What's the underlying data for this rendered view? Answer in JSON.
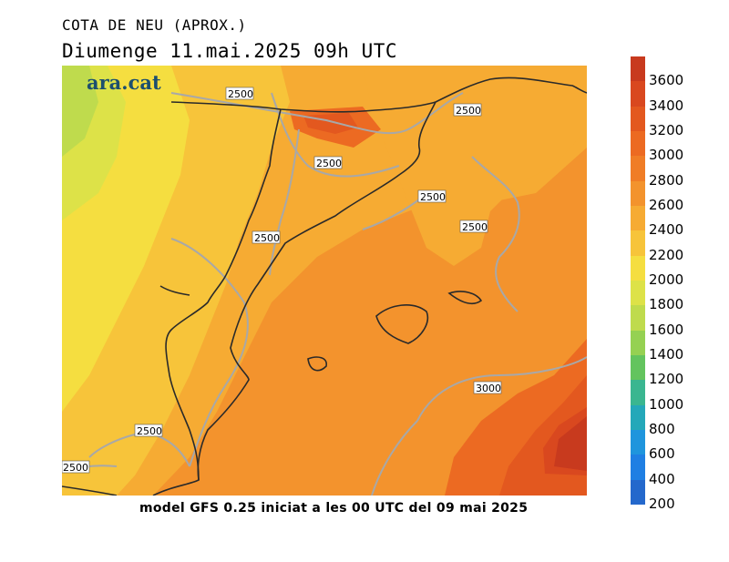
{
  "title": "COTA DE NEU (APROX.)",
  "subtitle": "Diumenge  11.mai.2025 09h UTC",
  "logo_text": "ara.cat",
  "footer": "model GFS 0.25 iniciat a les 00 UTC del 09 mai 2025",
  "contour_labels": [
    "2500",
    "2500",
    "2500",
    "2500",
    "2500",
    "2500",
    "2500",
    "2500",
    "3000"
  ],
  "colorbar": {
    "labels": [
      "3600",
      "3400",
      "3200",
      "3000",
      "2800",
      "2600",
      "2400",
      "2200",
      "2000",
      "1800",
      "1600",
      "1400",
      "1200",
      "1000",
      "800",
      "600",
      "400",
      "200"
    ],
    "colors": [
      "#c83a1e",
      "#d9481f",
      "#e3581f",
      "#ec6a22",
      "#f07d26",
      "#f3932d",
      "#f6ab33",
      "#f7c43a",
      "#f5de40",
      "#dde248",
      "#bfdb4d",
      "#95d152",
      "#63c45e",
      "#3ab690",
      "#24a8b9",
      "#1f95dd",
      "#1f7fe3",
      "#2468cc"
    ]
  }
}
